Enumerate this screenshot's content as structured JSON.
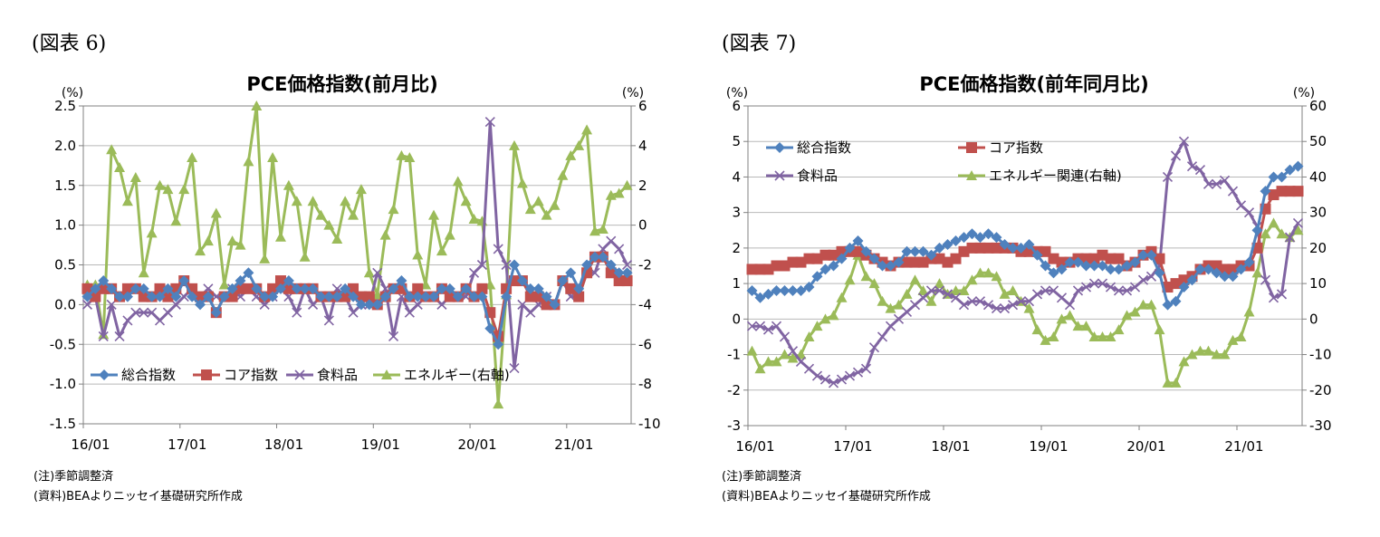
{
  "figures": [
    {
      "label": "(図表 6)",
      "notes": [
        "(注)季節調整済",
        "(資料)BEAよりニッセイ基礎研究所作成"
      ]
    },
    {
      "label": "(図表 7)",
      "notes": [
        "(注)季節調整済",
        "(資料)BEAよりニッセイ基礎研究所作成"
      ]
    }
  ],
  "chart_data": [
    {
      "type": "line",
      "title": "PCE価格指数(前月比)",
      "y_unit_left": "(%)",
      "y_unit_right": "(%)",
      "x_tick_labels": [
        "16/01",
        "17/01",
        "18/01",
        "19/01",
        "20/01",
        "21/01"
      ],
      "ylim_left": [
        -1.5,
        2.5
      ],
      "yticks_left": [
        "2.5",
        "2.0",
        "1.5",
        "1.0",
        "0.5",
        "0.0",
        "-0.5",
        "-1.0",
        "-1.5"
      ],
      "ylim_right": [
        -10,
        6
      ],
      "yticks_right": [
        "6",
        "4",
        "2",
        "0",
        "-2",
        "-4",
        "-6",
        "-8",
        "-10"
      ],
      "legend_position": "bottom-left",
      "grid": true,
      "series": [
        {
          "name": "総合指数",
          "axis": "left",
          "color": "#4f81bd",
          "marker": "diamond",
          "values": [
            0.1,
            0.2,
            0.3,
            0.2,
            0.1,
            0.1,
            0.2,
            0.2,
            0.1,
            0.1,
            0.2,
            0.1,
            0.3,
            0.1,
            0.0,
            0.1,
            -0.1,
            0.1,
            0.2,
            0.3,
            0.4,
            0.2,
            0.1,
            0.1,
            0.2,
            0.3,
            0.2,
            0.2,
            0.2,
            0.1,
            0.1,
            0.1,
            0.2,
            0.1,
            0.0,
            0.0,
            0.0,
            0.1,
            0.2,
            0.3,
            0.1,
            0.1,
            0.1,
            0.1,
            0.2,
            0.2,
            0.1,
            0.2,
            0.1,
            0.1,
            -0.3,
            -0.5,
            0.1,
            0.5,
            0.3,
            0.2,
            0.2,
            0.1,
            0.0,
            0.3,
            0.4,
            0.2,
            0.5,
            0.6,
            0.6,
            0.5,
            0.4,
            0.4
          ]
        },
        {
          "name": "コア指数",
          "axis": "left",
          "color": "#c0504d",
          "marker": "square",
          "values": [
            0.2,
            0.1,
            0.2,
            0.2,
            0.1,
            0.2,
            0.2,
            0.1,
            0.1,
            0.2,
            0.1,
            0.2,
            0.3,
            0.2,
            0.1,
            0.1,
            -0.1,
            0.1,
            0.1,
            0.2,
            0.2,
            0.2,
            0.1,
            0.2,
            0.3,
            0.2,
            0.2,
            0.2,
            0.2,
            0.1,
            0.1,
            0.1,
            0.1,
            0.2,
            0.1,
            0.1,
            0.0,
            0.1,
            0.2,
            0.2,
            0.1,
            0.2,
            0.1,
            0.1,
            0.2,
            0.1,
            0.1,
            0.2,
            0.1,
            0.2,
            -0.1,
            -0.4,
            0.2,
            0.3,
            0.3,
            0.1,
            0.1,
            0.0,
            0.0,
            0.3,
            0.2,
            0.1,
            0.4,
            0.6,
            0.6,
            0.4,
            0.3,
            0.3
          ]
        },
        {
          "name": "食料品",
          "axis": "left",
          "color": "#8064a2",
          "marker": "x",
          "values": [
            0.0,
            0.1,
            -0.4,
            0.0,
            -0.4,
            -0.2,
            -0.1,
            -0.1,
            -0.1,
            -0.2,
            -0.1,
            0.0,
            0.1,
            0.2,
            0.1,
            0.2,
            0.1,
            0.1,
            0.2,
            0.1,
            0.2,
            0.1,
            0.0,
            0.1,
            0.2,
            0.1,
            -0.1,
            0.2,
            0.0,
            0.1,
            -0.2,
            0.2,
            0.1,
            -0.1,
            0.0,
            0.0,
            0.4,
            0.2,
            -0.4,
            0.1,
            -0.1,
            0.0,
            0.1,
            0.1,
            0.0,
            0.1,
            0.1,
            0.1,
            0.4,
            0.5,
            2.3,
            0.7,
            0.5,
            -0.8,
            0.0,
            -0.1,
            0.0,
            0.1,
            0.0,
            0.3,
            0.1,
            0.1,
            0.4,
            0.4,
            0.7,
            0.8,
            0.7,
            0.5
          ]
        },
        {
          "name": "エネルギー(右軸)",
          "axis": "right",
          "color": "#9bbb59",
          "marker": "triangle",
          "values": [
            -3.0,
            -3.0,
            -5.5,
            3.8,
            2.9,
            1.2,
            2.4,
            -2.4,
            -0.4,
            2.0,
            1.8,
            0.2,
            1.8,
            3.4,
            -1.3,
            -0.8,
            0.6,
            -3.0,
            -0.8,
            -1.0,
            3.2,
            6.0,
            -1.7,
            3.4,
            -0.6,
            2.0,
            1.2,
            -1.6,
            1.2,
            0.5,
            0.0,
            -0.7,
            1.2,
            0.5,
            1.8,
            -2.4,
            -3.5,
            -0.5,
            0.8,
            3.5,
            3.4,
            -1.5,
            -3.0,
            0.5,
            -1.3,
            -0.5,
            2.2,
            1.2,
            0.3,
            0.2,
            -3.0,
            -9.0,
            -3.5,
            4.0,
            2.1,
            0.8,
            1.2,
            0.5,
            1.0,
            2.5,
            3.5,
            4.0,
            4.8,
            -0.3,
            -0.2,
            1.5,
            1.6,
            2.0
          ]
        }
      ]
    },
    {
      "type": "line",
      "title": "PCE価格指数(前年同月比)",
      "y_unit_left": "(%)",
      "y_unit_right": "(%)",
      "x_tick_labels": [
        "16/01",
        "17/01",
        "18/01",
        "19/01",
        "20/01",
        "21/01"
      ],
      "ylim_left": [
        -3,
        6
      ],
      "yticks_left": [
        "6",
        "5",
        "4",
        "3",
        "2",
        "1",
        "0",
        "-1",
        "-2",
        "-3"
      ],
      "ylim_right": [
        -30,
        60
      ],
      "yticks_right": [
        "60",
        "50",
        "40",
        "30",
        "20",
        "10",
        "0",
        "-10",
        "-20",
        "-30"
      ],
      "legend_position": "top-left",
      "grid": true,
      "series": [
        {
          "name": "総合指数",
          "axis": "left",
          "color": "#4f81bd",
          "marker": "diamond",
          "values": [
            0.8,
            0.6,
            0.7,
            0.8,
            0.8,
            0.8,
            0.8,
            0.9,
            1.2,
            1.4,
            1.5,
            1.7,
            2.0,
            2.2,
            1.9,
            1.7,
            1.5,
            1.5,
            1.6,
            1.9,
            1.9,
            1.9,
            1.8,
            2.0,
            2.1,
            2.2,
            2.3,
            2.4,
            2.3,
            2.4,
            2.3,
            2.1,
            2.0,
            2.0,
            2.1,
            1.8,
            1.5,
            1.3,
            1.4,
            1.6,
            1.6,
            1.5,
            1.5,
            1.5,
            1.4,
            1.4,
            1.5,
            1.6,
            1.8,
            1.8,
            1.3,
            0.4,
            0.5,
            0.9,
            1.1,
            1.4,
            1.4,
            1.3,
            1.2,
            1.2,
            1.4,
            1.6,
            2.5,
            3.6,
            4.0,
            4.0,
            4.2,
            4.3
          ]
        },
        {
          "name": "コア指数",
          "axis": "left",
          "color": "#c0504d",
          "marker": "square",
          "values": [
            1.4,
            1.4,
            1.4,
            1.5,
            1.5,
            1.6,
            1.6,
            1.7,
            1.7,
            1.8,
            1.8,
            1.9,
            1.9,
            1.9,
            1.8,
            1.7,
            1.6,
            1.5,
            1.6,
            1.6,
            1.6,
            1.6,
            1.7,
            1.7,
            1.6,
            1.7,
            1.9,
            2.0,
            2.0,
            2.0,
            2.0,
            2.0,
            2.0,
            1.9,
            1.9,
            1.9,
            1.9,
            1.7,
            1.6,
            1.6,
            1.7,
            1.7,
            1.7,
            1.8,
            1.7,
            1.7,
            1.5,
            1.6,
            1.8,
            1.9,
            1.7,
            0.9,
            1.0,
            1.1,
            1.2,
            1.4,
            1.5,
            1.5,
            1.4,
            1.4,
            1.5,
            1.5,
            2.0,
            3.1,
            3.5,
            3.6,
            3.6,
            3.6
          ]
        },
        {
          "name": "食料品",
          "axis": "left",
          "color": "#8064a2",
          "marker": "x",
          "values": [
            -0.2,
            -0.2,
            -0.3,
            -0.2,
            -0.5,
            -0.9,
            -1.2,
            -1.4,
            -1.6,
            -1.7,
            -1.8,
            -1.7,
            -1.6,
            -1.5,
            -1.4,
            -0.8,
            -0.5,
            -0.2,
            0.0,
            0.2,
            0.4,
            0.6,
            0.8,
            0.8,
            0.7,
            0.6,
            0.4,
            0.5,
            0.5,
            0.4,
            0.3,
            0.3,
            0.4,
            0.5,
            0.5,
            0.7,
            0.8,
            0.8,
            0.6,
            0.4,
            0.8,
            0.9,
            1.0,
            1.0,
            0.9,
            0.8,
            0.8,
            0.9,
            1.1,
            1.2,
            1.5,
            4.0,
            4.6,
            5.0,
            4.3,
            4.2,
            3.8,
            3.8,
            3.9,
            3.6,
            3.2,
            3.0,
            2.6,
            1.1,
            0.6,
            0.7,
            2.3,
            2.7
          ]
        },
        {
          "name": "エネルギー関連(右軸)",
          "axis": "right",
          "color": "#9bbb59",
          "marker": "triangle",
          "values": [
            -9,
            -14,
            -12,
            -12,
            -10,
            -11,
            -10,
            -5,
            -2,
            0,
            1,
            6,
            11,
            18,
            12,
            10,
            5,
            3,
            4,
            7,
            11,
            8,
            5,
            10,
            7,
            8,
            8,
            11,
            13,
            13,
            12,
            7,
            8,
            5,
            3,
            -3,
            -6,
            -5,
            0,
            1,
            -2,
            -2,
            -5,
            -5,
            -5,
            -3,
            1,
            2,
            4,
            4,
            -3,
            -18,
            -18,
            -12,
            -10,
            -9,
            -9,
            -10,
            -10,
            -6,
            -5,
            2,
            13,
            24,
            27,
            24,
            23,
            25
          ]
        }
      ]
    }
  ]
}
